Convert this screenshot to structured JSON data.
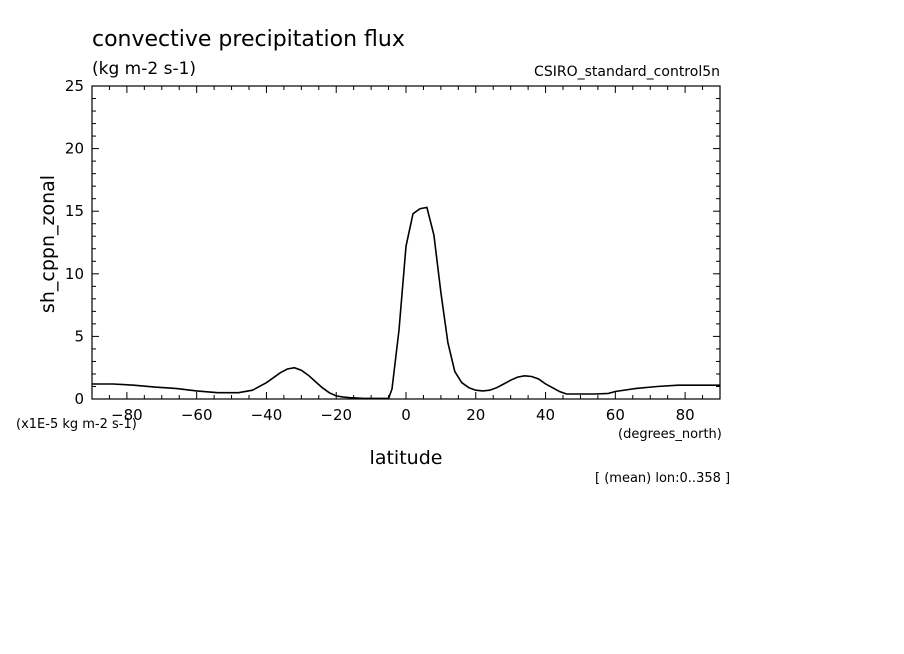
{
  "title": "convective precipitation flux",
  "units": "(kg m-2 s-1)",
  "dataset": "CSIRO_standard_control5n",
  "footnote": "[ (mean) lon:0..358 ]",
  "chart_data": {
    "type": "line",
    "xlabel": "latitude",
    "x_units": "(degrees_north)",
    "ylabel": "sh_cppn_zonal",
    "y_scale": "(x1E-5 kg m-2 s-1)",
    "xlim": [
      -90,
      90
    ],
    "ylim": [
      0,
      25
    ],
    "x_ticks": [
      -80,
      -60,
      -40,
      -20,
      0,
      20,
      40,
      60,
      80
    ],
    "y_ticks": [
      0,
      5,
      10,
      15,
      20,
      25
    ],
    "x_tick_labels": [
      "−80",
      "−60",
      "−40",
      "−20",
      "0",
      "20",
      "40",
      "60",
      "80"
    ],
    "y_tick_labels": [
      "0",
      "5",
      "10",
      "15",
      "20",
      "25"
    ],
    "grid": false,
    "series": [
      {
        "x": [
          -90,
          -84,
          -78,
          -72,
          -66,
          -60,
          -54,
          -48,
          -44,
          -40,
          -36,
          -34,
          -32,
          -30,
          -28,
          -26,
          -24,
          -22,
          -20,
          -18,
          -16,
          -12,
          -8,
          -5,
          -4,
          -2,
          0,
          2,
          4,
          6,
          8,
          10,
          12,
          14,
          16,
          18,
          20,
          22,
          24,
          26,
          28,
          30,
          32,
          34,
          36,
          38,
          40,
          42,
          44,
          46,
          48,
          50,
          54,
          58,
          60,
          66,
          72,
          78,
          84,
          90
        ],
        "y": [
          1.2,
          1.2,
          1.1,
          0.95,
          0.85,
          0.65,
          0.5,
          0.5,
          0.7,
          1.3,
          2.1,
          2.4,
          2.5,
          2.3,
          1.9,
          1.4,
          0.9,
          0.5,
          0.25,
          0.15,
          0.1,
          0.05,
          0.05,
          0.05,
          0.8,
          5.5,
          12.2,
          14.8,
          15.2,
          15.3,
          13.1,
          8.5,
          4.5,
          2.2,
          1.3,
          0.9,
          0.7,
          0.65,
          0.7,
          0.9,
          1.2,
          1.5,
          1.75,
          1.85,
          1.8,
          1.6,
          1.2,
          0.9,
          0.6,
          0.4,
          0.4,
          0.4,
          0.4,
          0.45,
          0.6,
          0.85,
          1.0,
          1.1,
          1.1,
          1.1
        ]
      }
    ]
  }
}
